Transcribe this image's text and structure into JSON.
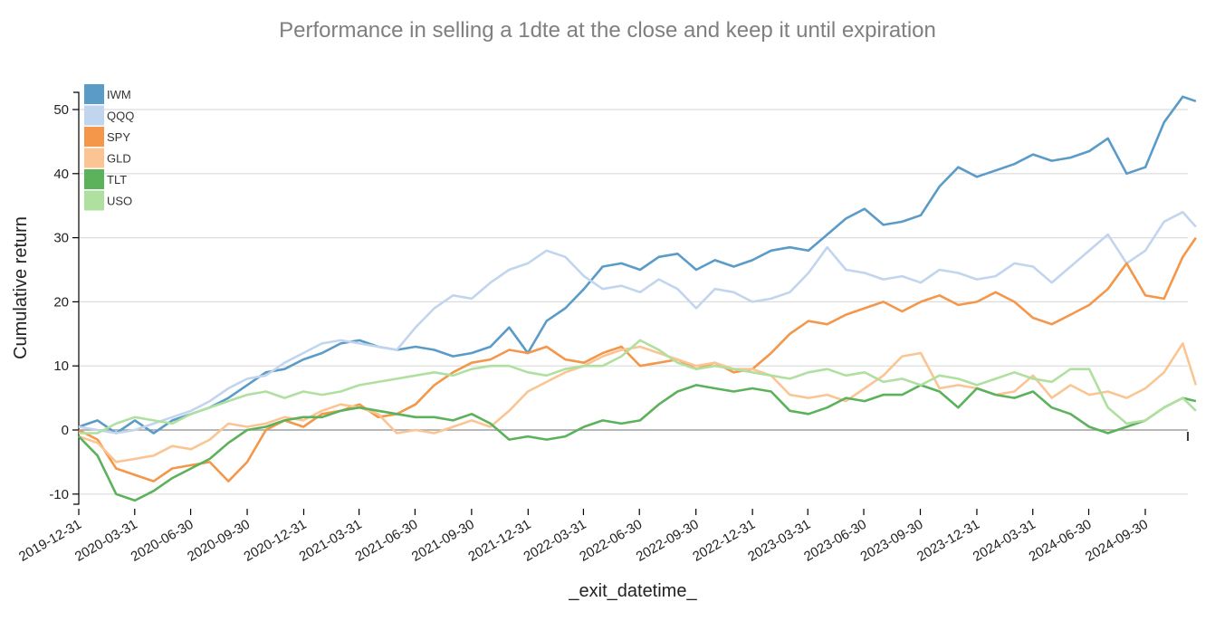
{
  "chart_data": {
    "type": "line",
    "title": "Performance in selling a 1dte at the close and keep it until expiration",
    "xlabel": "_exit_datetime_",
    "ylabel": "Cumulative return",
    "x_type": "date",
    "xlim": [
      "2019-12-31",
      "2024-12-20"
    ],
    "ylim": [
      -11.6,
      52.7
    ],
    "yticks": [
      -10,
      0,
      10,
      20,
      30,
      40,
      50
    ],
    "xticks": [
      "2019-12-31",
      "2020-03-31",
      "2020-06-30",
      "2020-09-30",
      "2020-12-31",
      "2021-03-31",
      "2021-06-30",
      "2021-09-30",
      "2021-12-31",
      "2022-03-31",
      "2022-06-30",
      "2022-09-30",
      "2022-12-31",
      "2023-03-31",
      "2023-06-30",
      "2023-09-30",
      "2023-12-31",
      "2024-03-31",
      "2024-06-30",
      "2024-09-30"
    ],
    "grid": "horizontal",
    "legend_position": "top-left",
    "x_months": [
      0,
      1,
      2,
      3,
      4,
      5,
      6,
      7,
      8,
      9,
      10,
      11,
      12,
      13,
      14,
      15,
      16,
      17,
      18,
      19,
      20,
      21,
      22,
      23,
      24,
      25,
      26,
      27,
      28,
      29,
      30,
      31,
      32,
      33,
      34,
      35,
      36,
      37,
      38,
      39,
      40,
      41,
      42,
      43,
      44,
      45,
      46,
      47,
      48,
      49,
      50,
      51,
      52,
      53,
      54,
      55,
      56,
      57,
      58,
      59,
      59.7
    ],
    "series": [
      {
        "name": "IWM",
        "color": "#5a9bc8",
        "values": [
          0.5,
          1.5,
          -0.5,
          1.5,
          -0.5,
          1.5,
          2.5,
          3.5,
          5.0,
          7.0,
          9.0,
          9.5,
          11.0,
          12.0,
          13.5,
          14.0,
          13.0,
          12.5,
          13.0,
          12.5,
          11.5,
          12.0,
          13.0,
          16.0,
          12.0,
          17.0,
          19.0,
          22.0,
          25.5,
          26.0,
          25.0,
          27.0,
          27.5,
          25.0,
          26.5,
          25.5,
          26.5,
          28.0,
          28.5,
          28.0,
          30.5,
          33.0,
          34.5,
          32.0,
          32.5,
          33.5,
          38.0,
          41.0,
          39.5,
          40.5,
          41.5,
          43.0,
          42.0,
          42.5,
          43.5,
          45.5,
          40.0,
          41.0,
          48.0,
          52.0,
          51.3
        ]
      },
      {
        "name": "QQQ",
        "color": "#c2d5ee",
        "values": [
          0.5,
          0.0,
          -0.5,
          0.0,
          1.0,
          2.0,
          3.0,
          4.5,
          6.5,
          8.0,
          8.5,
          10.5,
          12.0,
          13.5,
          14.0,
          13.5,
          13.0,
          12.5,
          16.0,
          19.0,
          21.0,
          20.5,
          23.0,
          25.0,
          26.0,
          28.0,
          27.0,
          24.0,
          22.0,
          22.5,
          21.5,
          23.5,
          22.0,
          19.0,
          22.0,
          21.5,
          20.0,
          20.5,
          21.5,
          24.5,
          28.5,
          25.0,
          24.5,
          23.5,
          24.0,
          23.0,
          25.0,
          24.5,
          23.5,
          24.0,
          26.0,
          25.5,
          23.0,
          25.5,
          28.0,
          30.5,
          26.0,
          28.0,
          32.5,
          34.0,
          31.7
        ]
      },
      {
        "name": "SPY",
        "color": "#f4974a",
        "values": [
          0.0,
          -1.5,
          -6.0,
          -7.0,
          -8.0,
          -6.0,
          -5.5,
          -5.0,
          -8.0,
          -5.0,
          0.0,
          1.5,
          0.5,
          2.5,
          3.0,
          4.0,
          2.0,
          2.5,
          4.0,
          7.0,
          9.0,
          10.5,
          11.0,
          12.5,
          12.0,
          13.0,
          11.0,
          10.5,
          12.0,
          13.0,
          10.0,
          10.5,
          11.0,
          9.5,
          10.5,
          9.0,
          9.5,
          12.0,
          15.0,
          17.0,
          16.5,
          18.0,
          19.0,
          20.0,
          18.5,
          20.0,
          21.0,
          19.5,
          20.0,
          21.5,
          20.0,
          17.5,
          16.5,
          18.0,
          19.5,
          22.0,
          26.0,
          21.0,
          20.5,
          27.0,
          30.0
        ]
      },
      {
        "name": "GLD",
        "color": "#fbc593",
        "values": [
          -1.0,
          -2.0,
          -5.0,
          -4.5,
          -4.0,
          -2.5,
          -3.0,
          -1.5,
          1.0,
          0.5,
          1.0,
          2.0,
          1.5,
          3.0,
          4.0,
          3.5,
          2.5,
          -0.5,
          0.0,
          -0.5,
          0.5,
          1.5,
          0.5,
          3.0,
          6.0,
          7.5,
          9.0,
          10.0,
          11.5,
          12.5,
          13.0,
          12.0,
          11.0,
          10.0,
          10.5,
          9.5,
          9.5,
          8.5,
          5.5,
          5.0,
          5.5,
          4.5,
          6.5,
          8.5,
          11.5,
          12.0,
          6.5,
          7.0,
          6.5,
          5.5,
          6.0,
          8.5,
          5.0,
          7.0,
          5.5,
          6.0,
          5.0,
          6.5,
          9.0,
          13.5,
          7.0
        ]
      },
      {
        "name": "TLT",
        "color": "#5cb25b",
        "values": [
          -1.0,
          -4.0,
          -10.0,
          -11.0,
          -9.5,
          -7.5,
          -6.0,
          -4.5,
          -2.0,
          0.0,
          0.5,
          1.5,
          2.0,
          2.0,
          3.0,
          3.5,
          3.0,
          2.5,
          2.0,
          2.0,
          1.5,
          2.5,
          1.0,
          -1.5,
          -1.0,
          -1.5,
          -1.0,
          0.5,
          1.5,
          1.0,
          1.5,
          4.0,
          6.0,
          7.0,
          6.5,
          6.0,
          6.5,
          6.0,
          3.0,
          2.5,
          3.5,
          5.0,
          4.5,
          5.5,
          5.5,
          7.0,
          6.0,
          3.5,
          6.5,
          5.5,
          5.0,
          6.0,
          3.5,
          2.5,
          0.5,
          -0.5,
          0.5,
          1.5,
          3.5,
          5.0,
          4.5
        ]
      },
      {
        "name": "USO",
        "color": "#b0e0a0",
        "values": [
          -0.5,
          -0.5,
          1.0,
          2.0,
          1.5,
          1.0,
          2.5,
          3.5,
          4.5,
          5.5,
          6.0,
          5.0,
          6.0,
          5.5,
          6.0,
          7.0,
          7.5,
          8.0,
          8.5,
          9.0,
          8.5,
          9.5,
          10.0,
          10.0,
          9.0,
          8.5,
          9.5,
          10.0,
          10.0,
          11.5,
          14.0,
          12.5,
          10.5,
          9.5,
          10.0,
          9.5,
          9.0,
          8.5,
          8.0,
          9.0,
          9.5,
          8.5,
          9.0,
          7.5,
          8.0,
          7.0,
          8.5,
          8.0,
          7.0,
          8.0,
          9.0,
          8.0,
          7.5,
          9.5,
          9.5,
          3.5,
          1.0,
          1.5,
          3.5,
          5.0,
          3.0
        ]
      }
    ]
  }
}
